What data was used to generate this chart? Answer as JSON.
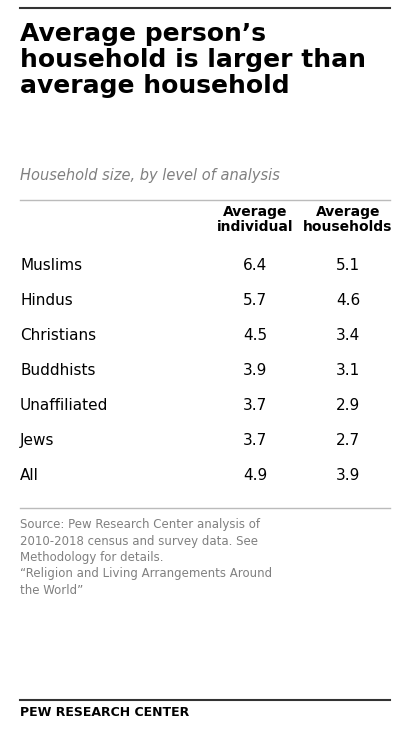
{
  "title_line1": "Average person’s",
  "title_line2": "household is larger than",
  "title_line3": "average household",
  "subtitle": "Household size, by level of analysis",
  "col1_header": "Average\nindividual",
  "col2_header": "Average\nhouseholds",
  "rows": [
    {
      "label": "Muslims",
      "col1": "6.4",
      "col2": "5.1"
    },
    {
      "label": "Hindus",
      "col1": "5.7",
      "col2": "4.6"
    },
    {
      "label": "Christians",
      "col1": "4.5",
      "col2": "3.4"
    },
    {
      "label": "Buddhists",
      "col1": "3.9",
      "col2": "3.1"
    },
    {
      "label": "Unaffiliated",
      "col1": "3.7",
      "col2": "2.9"
    },
    {
      "label": "Jews",
      "col1": "3.7",
      "col2": "2.7"
    },
    {
      "label": "All",
      "col1": "4.9",
      "col2": "3.9"
    }
  ],
  "source_line1": "Source: Pew Research Center analysis of",
  "source_line2": "2010-2018 census and survey data. See",
  "source_line3": "Methodology for details.",
  "source_line4": "“Religion and Living Arrangements Around",
  "source_line5": "the World”",
  "footer": "PEW RESEARCH CENTER",
  "bg_color": "#ffffff",
  "title_color": "#000000",
  "subtitle_color": "#808080",
  "header_color": "#000000",
  "row_label_color": "#000000",
  "row_value_color": "#000000",
  "source_color": "#808080",
  "footer_color": "#000000",
  "line_color": "#bbbbbb",
  "fig_width": 4.1,
  "fig_height": 7.3,
  "dpi": 100
}
